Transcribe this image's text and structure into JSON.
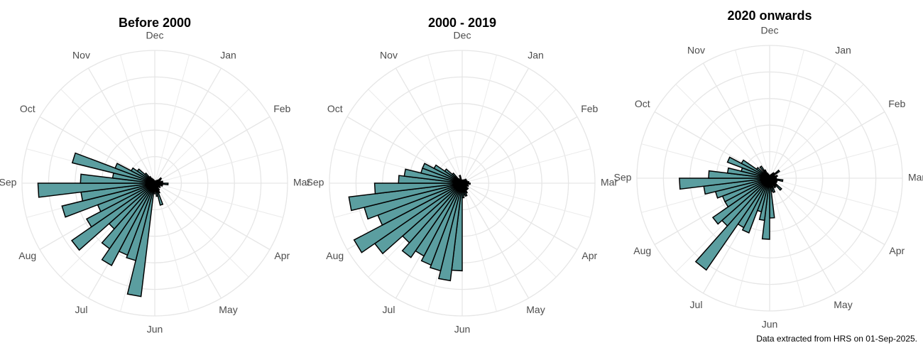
{
  "caption": "Data extracted from HRS on 01-Sep-2025.",
  "colors": {
    "bar_fill": "#5b9ea0",
    "bar_stroke": "#000000",
    "grid": "#e6e6e6",
    "label": "#4d4d4d"
  },
  "chart_data": [
    {
      "type": "bar",
      "coordinate_system": "polar",
      "title": "Before 2000",
      "months": [
        "Jan",
        "Feb",
        "Mar",
        "Apr",
        "May",
        "Jun",
        "Jul",
        "Aug",
        "Sep",
        "Oct",
        "Nov",
        "Dec"
      ],
      "radial_gridlines": [
        1,
        2,
        3,
        4,
        5
      ],
      "ylim": [
        0,
        5
      ],
      "weeks_per_year": 52,
      "week_values": [
        0.05,
        0.08,
        0.06,
        0.1,
        0.08,
        0.12,
        0.15,
        0.3,
        0.25,
        0.12,
        0.2,
        0.3,
        0.25,
        0.5,
        0.1,
        0.3,
        0.2,
        0.1,
        0.25,
        0.15,
        0.2,
        0.3,
        0.4,
        0.85,
        0.5,
        0.3,
        0.4,
        0.3,
        0.75,
        0.25,
        0.45,
        0.4,
        0.55,
        0.6,
        0.7,
        0.6,
        0.5,
        0.4,
        0.3,
        0.2,
        0.55,
        0.3,
        0.25,
        0.35,
        0.55,
        0.45,
        0.3,
        0.2,
        0.15,
        0.12,
        0.08,
        0.06
      ],
      "series": [
        {
          "name": "",
          "x": [
            27,
            28,
            29,
            30,
            31,
            32,
            33,
            34,
            35,
            36,
            37,
            38,
            39,
            40,
            41,
            42,
            43,
            44,
            45,
            46
          ],
          "values": [
            4.3,
            3.0,
            2.9,
            3.5,
            3.0,
            2.3,
            3.8,
            2.9,
            2.3,
            3.6,
            2.8,
            4.4,
            2.8,
            1.6,
            3.2,
            1.6,
            1.0,
            0.8,
            0.5,
            0.3
          ]
        }
      ]
    },
    {
      "type": "bar",
      "coordinate_system": "polar",
      "title": "2000 - 2019",
      "months": [
        "Jan",
        "Feb",
        "Mar",
        "Apr",
        "May",
        "Jun",
        "Jul",
        "Aug",
        "Sep",
        "Oct",
        "Nov",
        "Dec"
      ],
      "radial_gridlines": [
        1,
        2,
        3,
        4,
        5
      ],
      "ylim": [
        0,
        5
      ],
      "weeks_per_year": 52,
      "week_values": [
        0.08,
        0.1,
        0.12,
        0.1,
        0.15,
        0.1,
        0.2,
        0.15,
        0.12,
        0.2,
        0.15,
        0.25,
        0.15,
        0.3,
        0.2,
        0.15,
        0.25,
        0.2,
        0.15,
        0.3,
        0.25,
        0.3,
        0.4,
        0.5,
        0.45,
        0.55,
        0.6,
        0.7,
        0.8,
        0.9,
        1.0,
        0.7,
        0.6,
        0.55,
        0.45,
        0.4,
        0.35,
        0.3,
        0.25,
        0.2,
        0.25,
        0.3,
        0.25,
        0.3,
        0.2,
        0.22,
        0.15,
        0.12,
        0.15,
        0.3,
        0.1,
        0.12
      ],
      "series": [
        {
          "name": "",
          "x": [
            26,
            27,
            28,
            29,
            30,
            31,
            32,
            33,
            34,
            35,
            36,
            37,
            38,
            39,
            40,
            41,
            42,
            43,
            44,
            45,
            46
          ],
          "values": [
            3.3,
            3.7,
            3.4,
            3.3,
            3.1,
            3.4,
            3.0,
            4.0,
            4.6,
            3.4,
            3.8,
            4.3,
            3.3,
            2.4,
            2.2,
            1.6,
            1.6,
            1.2,
            0.8,
            0.5,
            0.2
          ]
        }
      ]
    },
    {
      "type": "bar",
      "coordinate_system": "polar",
      "title": "2020 onwards",
      "months": [
        "Jan",
        "Feb",
        "Mar",
        "Apr",
        "May",
        "Jun",
        "Jul",
        "Aug",
        "Sep",
        "Oct",
        "Nov",
        "Dec"
      ],
      "radial_gridlines": [
        1,
        2,
        3,
        4,
        5
      ],
      "ylim": [
        0,
        5
      ],
      "weeks_per_year": 52,
      "week_values": [
        0.08,
        0.1,
        0.12,
        0.15,
        0.2,
        0.25,
        0.1,
        0.45,
        0.2,
        0.15,
        0.3,
        0.2,
        0.25,
        0.15,
        0.5,
        0.3,
        0.2,
        0.3,
        0.25,
        0.6,
        0.35,
        0.4,
        0.2,
        0.55,
        0.5,
        0.6,
        0.4,
        0.3,
        0.35,
        0.4,
        0.3,
        0.25,
        0.3,
        0.2,
        0.55,
        0.3,
        0.6,
        0.45,
        0.2,
        0.3,
        0.25,
        0.15,
        0.7,
        0.2,
        0.4,
        0.3,
        0.55,
        0.35,
        0.2,
        0.15,
        0.1,
        0.08
      ],
      "series": [
        {
          "name": "",
          "x": [
            25,
            26,
            27,
            28,
            29,
            30,
            31,
            32,
            33,
            34,
            35,
            36,
            37,
            38,
            39,
            40,
            41,
            42,
            43,
            44
          ],
          "values": [
            1.5,
            2.3,
            1.6,
            1.3,
            2.2,
            2.1,
            4.2,
            2.4,
            2.6,
            1.9,
            1.9,
            2.1,
            2.5,
            3.4,
            2.3,
            1.6,
            1.1,
            1.7,
            1.2,
            0.6
          ]
        }
      ]
    }
  ]
}
